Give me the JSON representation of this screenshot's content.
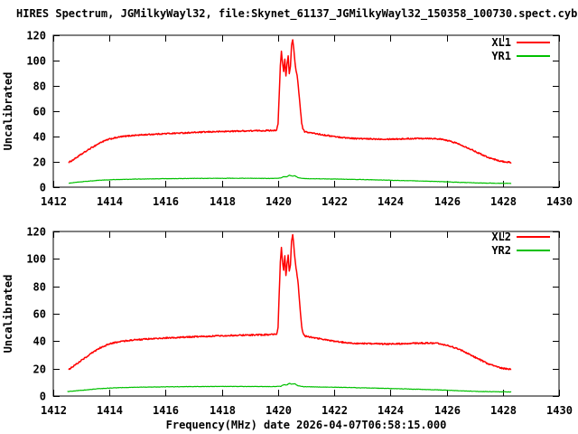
{
  "title": "HIRES Spectrum, JGMilkyWayl32, file:Skynet_61137_JGMilkyWayl32_150358_100730.spect.cyb.txt",
  "caption": "Frequency(MHz) date 2026-04-07T06:58:15.000",
  "colors": {
    "frame": "#000000",
    "background": "#ffffff",
    "red": "#ff0000",
    "green": "#00c000"
  },
  "chart_data": [
    {
      "type": "line",
      "ylabel": "Uncalibrated",
      "xlabel": "",
      "xlim": [
        1412,
        1430
      ],
      "ylim": [
        0,
        120
      ],
      "xticks": [
        1412,
        1414,
        1416,
        1418,
        1420,
        1422,
        1424,
        1426,
        1428,
        1430
      ],
      "yticks": [
        0,
        20,
        40,
        60,
        80,
        100,
        120
      ],
      "grid": false,
      "legend_position": "top-right",
      "series": [
        {
          "name": "XL1",
          "color": "#ff0000",
          "noise": 0.5,
          "points": [
            [
              1412.55,
              19.5
            ],
            [
              1412.7,
              21.5
            ],
            [
              1413.0,
              26
            ],
            [
              1413.35,
              31
            ],
            [
              1413.7,
              35.5
            ],
            [
              1414.0,
              38
            ],
            [
              1414.4,
              39.8
            ],
            [
              1414.8,
              40.8
            ],
            [
              1415.3,
              41.5
            ],
            [
              1416.0,
              42.3
            ],
            [
              1416.8,
              43.0
            ],
            [
              1417.6,
              43.7
            ],
            [
              1418.4,
              44.2
            ],
            [
              1419.0,
              44.5
            ],
            [
              1419.6,
              44.7
            ],
            [
              1419.95,
              45.0
            ],
            [
              1420.0,
              50
            ],
            [
              1420.04,
              72
            ],
            [
              1420.08,
              96
            ],
            [
              1420.12,
              107
            ],
            [
              1420.16,
              98
            ],
            [
              1420.2,
              91
            ],
            [
              1420.24,
              101
            ],
            [
              1420.28,
              88
            ],
            [
              1420.32,
              97
            ],
            [
              1420.36,
              104
            ],
            [
              1420.4,
              90
            ],
            [
              1420.44,
              95
            ],
            [
              1420.48,
              112
            ],
            [
              1420.52,
              116
            ],
            [
              1420.56,
              109
            ],
            [
              1420.6,
              99
            ],
            [
              1420.64,
              92
            ],
            [
              1420.68,
              88
            ],
            [
              1420.72,
              80
            ],
            [
              1420.76,
              70
            ],
            [
              1420.8,
              60
            ],
            [
              1420.84,
              51
            ],
            [
              1420.88,
              46
            ],
            [
              1420.95,
              43.8
            ],
            [
              1421.2,
              42.8
            ],
            [
              1421.7,
              41.0
            ],
            [
              1422.2,
              39.4
            ],
            [
              1422.7,
              38.5
            ],
            [
              1423.2,
              38.1
            ],
            [
              1423.8,
              38.0
            ],
            [
              1424.4,
              38.1
            ],
            [
              1424.9,
              38.5
            ],
            [
              1425.3,
              38.6
            ],
            [
              1425.7,
              38.2
            ],
            [
              1426.0,
              37.0
            ],
            [
              1426.3,
              35.2
            ],
            [
              1426.6,
              32.6
            ],
            [
              1426.9,
              29.5
            ],
            [
              1427.2,
              26.3
            ],
            [
              1427.5,
              23.4
            ],
            [
              1427.8,
              21.2
            ],
            [
              1428.05,
              20.0
            ],
            [
              1428.3,
              19.5
            ]
          ]
        },
        {
          "name": "YR1",
          "color": "#00c000",
          "noise": 0.15,
          "points": [
            [
              1412.55,
              3.2
            ],
            [
              1413.0,
              4.3
            ],
            [
              1413.6,
              5.4
            ],
            [
              1414.2,
              6.0
            ],
            [
              1415.0,
              6.4
            ],
            [
              1416.0,
              6.7
            ],
            [
              1417.0,
              6.9
            ],
            [
              1418.0,
              7.0
            ],
            [
              1419.0,
              7.0
            ],
            [
              1419.8,
              6.9
            ],
            [
              1420.1,
              7.2
            ],
            [
              1420.2,
              8.4
            ],
            [
              1420.3,
              8.0
            ],
            [
              1420.4,
              9.4
            ],
            [
              1420.5,
              8.7
            ],
            [
              1420.6,
              9.0
            ],
            [
              1420.7,
              7.6
            ],
            [
              1420.9,
              6.8
            ],
            [
              1421.5,
              6.6
            ],
            [
              1422.3,
              6.3
            ],
            [
              1423.2,
              5.9
            ],
            [
              1424.1,
              5.4
            ],
            [
              1425.0,
              4.9
            ],
            [
              1425.8,
              4.4
            ],
            [
              1426.5,
              3.8
            ],
            [
              1427.2,
              3.3
            ],
            [
              1427.8,
              3.1
            ],
            [
              1428.3,
              3.0
            ]
          ]
        }
      ]
    },
    {
      "type": "line",
      "ylabel": "Uncalibrated",
      "xlabel": "Frequency(MHz) date 2026-04-07T06:58:15.000",
      "xlim": [
        1412,
        1430
      ],
      "ylim": [
        0,
        120
      ],
      "xticks": [
        1412,
        1414,
        1416,
        1418,
        1420,
        1422,
        1424,
        1426,
        1428,
        1430
      ],
      "yticks": [
        0,
        20,
        40,
        60,
        80,
        100,
        120
      ],
      "grid": false,
      "legend_position": "top-right",
      "series": [
        {
          "name": "XL2",
          "color": "#ff0000",
          "noise": 0.5,
          "points": [
            [
              1412.55,
              19.5
            ],
            [
              1412.7,
              21.5
            ],
            [
              1413.0,
              26
            ],
            [
              1413.35,
              31
            ],
            [
              1413.7,
              35.5
            ],
            [
              1414.0,
              38
            ],
            [
              1414.4,
              39.8
            ],
            [
              1414.8,
              40.8
            ],
            [
              1415.3,
              41.5
            ],
            [
              1416.0,
              42.3
            ],
            [
              1416.8,
              43.0
            ],
            [
              1417.6,
              43.7
            ],
            [
              1418.4,
              44.2
            ],
            [
              1419.0,
              44.5
            ],
            [
              1419.6,
              44.7
            ],
            [
              1419.95,
              45.0
            ],
            [
              1420.0,
              50
            ],
            [
              1420.04,
              74
            ],
            [
              1420.08,
              98
            ],
            [
              1420.12,
              108
            ],
            [
              1420.16,
              97
            ],
            [
              1420.2,
              92
            ],
            [
              1420.24,
              102
            ],
            [
              1420.28,
              88
            ],
            [
              1420.32,
              96
            ],
            [
              1420.36,
              103
            ],
            [
              1420.4,
              91
            ],
            [
              1420.44,
              96
            ],
            [
              1420.48,
              113
            ],
            [
              1420.52,
              117.5
            ],
            [
              1420.56,
              110
            ],
            [
              1420.6,
              100
            ],
            [
              1420.64,
              93
            ],
            [
              1420.68,
              88
            ],
            [
              1420.72,
              81
            ],
            [
              1420.76,
              70
            ],
            [
              1420.8,
              60
            ],
            [
              1420.84,
              51
            ],
            [
              1420.88,
              46
            ],
            [
              1420.95,
              43.8
            ],
            [
              1421.2,
              42.8
            ],
            [
              1421.7,
              41.0
            ],
            [
              1422.2,
              39.4
            ],
            [
              1422.7,
              38.5
            ],
            [
              1423.2,
              38.1
            ],
            [
              1423.8,
              38.0
            ],
            [
              1424.4,
              38.1
            ],
            [
              1424.9,
              38.5
            ],
            [
              1425.3,
              38.6
            ],
            [
              1425.7,
              38.2
            ],
            [
              1426.0,
              37.0
            ],
            [
              1426.3,
              35.2
            ],
            [
              1426.6,
              32.6
            ],
            [
              1426.9,
              29.5
            ],
            [
              1427.2,
              26.3
            ],
            [
              1427.5,
              23.4
            ],
            [
              1427.8,
              21.2
            ],
            [
              1428.05,
              20.0
            ],
            [
              1428.3,
              19.5
            ]
          ]
        },
        {
          "name": "YR2",
          "color": "#00c000",
          "noise": 0.15,
          "points": [
            [
              1412.5,
              3.2
            ],
            [
              1413.0,
              4.2
            ],
            [
              1413.6,
              5.3
            ],
            [
              1414.2,
              6.0
            ],
            [
              1415.0,
              6.4
            ],
            [
              1416.0,
              6.7
            ],
            [
              1417.0,
              6.9
            ],
            [
              1418.0,
              7.0
            ],
            [
              1419.0,
              7.0
            ],
            [
              1419.8,
              6.9
            ],
            [
              1420.1,
              7.1
            ],
            [
              1420.2,
              8.3
            ],
            [
              1420.3,
              8.0
            ],
            [
              1420.4,
              9.2
            ],
            [
              1420.5,
              8.6
            ],
            [
              1420.6,
              9.0
            ],
            [
              1420.7,
              7.5
            ],
            [
              1420.9,
              6.8
            ],
            [
              1421.5,
              6.6
            ],
            [
              1422.3,
              6.3
            ],
            [
              1423.2,
              5.9
            ],
            [
              1424.1,
              5.4
            ],
            [
              1425.0,
              4.9
            ],
            [
              1425.8,
              4.4
            ],
            [
              1426.5,
              3.8
            ],
            [
              1427.2,
              3.3
            ],
            [
              1427.8,
              3.1
            ],
            [
              1428.3,
              3.0
            ]
          ]
        }
      ]
    }
  ]
}
